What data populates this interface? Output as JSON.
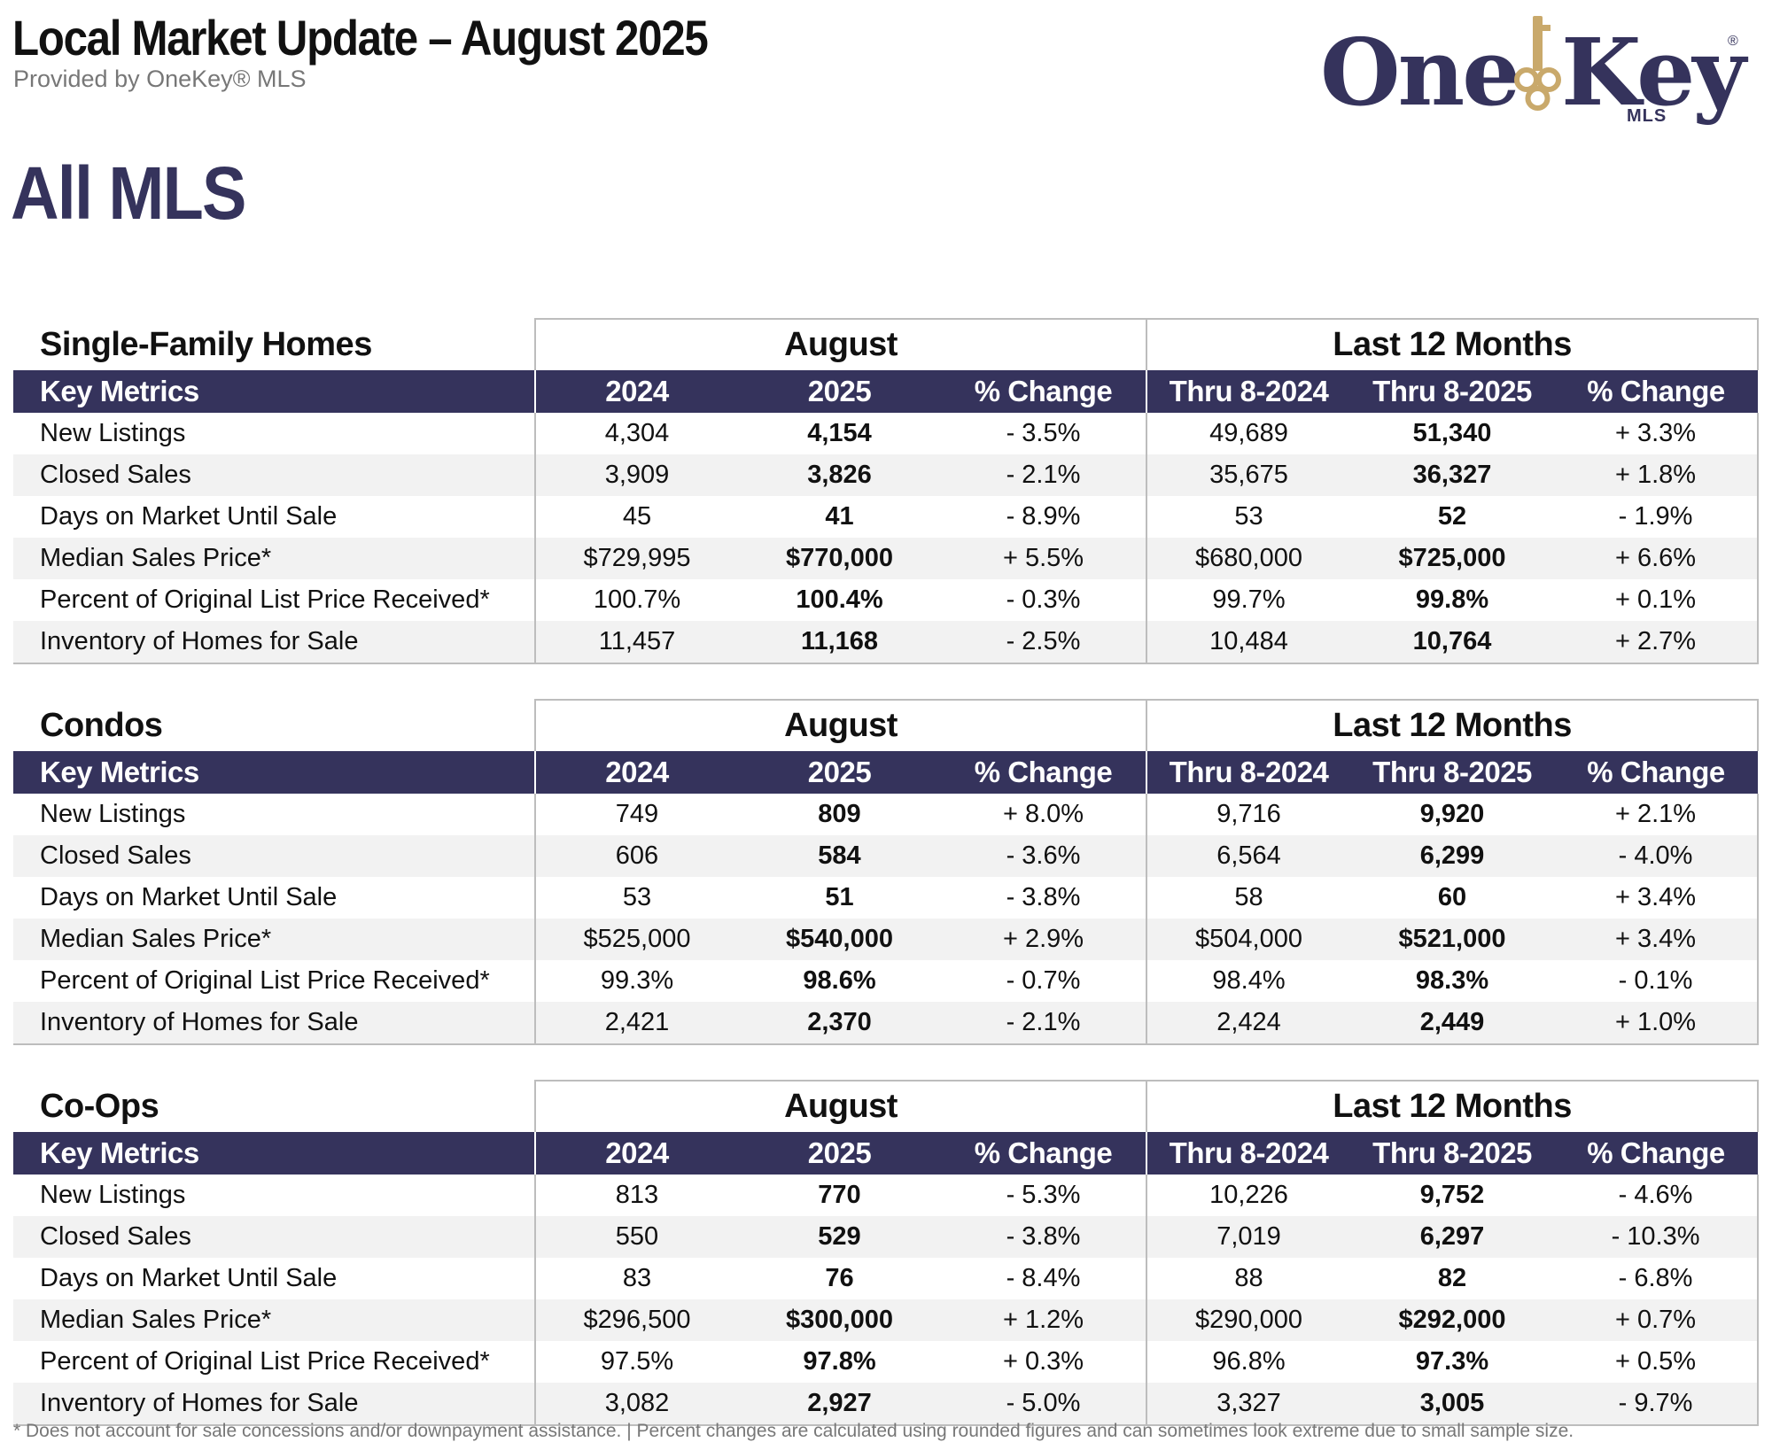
{
  "header": {
    "title": "Local Market Update – August 2025",
    "subtitle": "Provided by OneKey® MLS"
  },
  "logo": {
    "text_one": "One",
    "text_key": "Key",
    "registered": "®",
    "mls": "MLS",
    "accent_color": "#c9a96b",
    "brand_color": "#35335c"
  },
  "area_title": "All MLS",
  "column_headers": {
    "key_metrics": "Key Metrics",
    "group_month": "August",
    "group_12m": "Last 12 Months",
    "y2024": "2024",
    "y2025": "2025",
    "pct_change": "% Change",
    "thru_2024": "Thru 8-2024",
    "thru_2025": "Thru 8-2025"
  },
  "sections": [
    {
      "title": "Single-Family Homes",
      "rows": [
        {
          "metric": "New Listings",
          "m2024": "4,304",
          "m2025": "4,154",
          "mchg": "- 3.5%",
          "t2024": "49,689",
          "t2025": "51,340",
          "tchg": "+ 3.3%"
        },
        {
          "metric": "Closed Sales",
          "m2024": "3,909",
          "m2025": "3,826",
          "mchg": "- 2.1%",
          "t2024": "35,675",
          "t2025": "36,327",
          "tchg": "+ 1.8%"
        },
        {
          "metric": "Days on Market Until Sale",
          "m2024": "45",
          "m2025": "41",
          "mchg": "- 8.9%",
          "t2024": "53",
          "t2025": "52",
          "tchg": "- 1.9%"
        },
        {
          "metric": "Median Sales Price*",
          "m2024": "$729,995",
          "m2025": "$770,000",
          "mchg": "+ 5.5%",
          "t2024": "$680,000",
          "t2025": "$725,000",
          "tchg": "+ 6.6%"
        },
        {
          "metric": "Percent of Original List Price Received*",
          "m2024": "100.7%",
          "m2025": "100.4%",
          "mchg": "- 0.3%",
          "t2024": "99.7%",
          "t2025": "99.8%",
          "tchg": "+ 0.1%"
        },
        {
          "metric": "Inventory of Homes for Sale",
          "m2024": "11,457",
          "m2025": "11,168",
          "mchg": "- 2.5%",
          "t2024": "10,484",
          "t2025": "10,764",
          "tchg": "+ 2.7%"
        }
      ]
    },
    {
      "title": "Condos",
      "rows": [
        {
          "metric": "New Listings",
          "m2024": "749",
          "m2025": "809",
          "mchg": "+ 8.0%",
          "t2024": "9,716",
          "t2025": "9,920",
          "tchg": "+ 2.1%"
        },
        {
          "metric": "Closed Sales",
          "m2024": "606",
          "m2025": "584",
          "mchg": "- 3.6%",
          "t2024": "6,564",
          "t2025": "6,299",
          "tchg": "- 4.0%"
        },
        {
          "metric": "Days on Market Until Sale",
          "m2024": "53",
          "m2025": "51",
          "mchg": "- 3.8%",
          "t2024": "58",
          "t2025": "60",
          "tchg": "+ 3.4%"
        },
        {
          "metric": "Median Sales Price*",
          "m2024": "$525,000",
          "m2025": "$540,000",
          "mchg": "+ 2.9%",
          "t2024": "$504,000",
          "t2025": "$521,000",
          "tchg": "+ 3.4%"
        },
        {
          "metric": "Percent of Original List Price Received*",
          "m2024": "99.3%",
          "m2025": "98.6%",
          "mchg": "- 0.7%",
          "t2024": "98.4%",
          "t2025": "98.3%",
          "tchg": "- 0.1%"
        },
        {
          "metric": "Inventory of Homes for Sale",
          "m2024": "2,421",
          "m2025": "2,370",
          "mchg": "- 2.1%",
          "t2024": "2,424",
          "t2025": "2,449",
          "tchg": "+ 1.0%"
        }
      ]
    },
    {
      "title": "Co-Ops",
      "rows": [
        {
          "metric": "New Listings",
          "m2024": "813",
          "m2025": "770",
          "mchg": "- 5.3%",
          "t2024": "10,226",
          "t2025": "9,752",
          "tchg": "- 4.6%"
        },
        {
          "metric": "Closed Sales",
          "m2024": "550",
          "m2025": "529",
          "mchg": "- 3.8%",
          "t2024": "7,019",
          "t2025": "6,297",
          "tchg": "- 10.3%"
        },
        {
          "metric": "Days on Market Until Sale",
          "m2024": "83",
          "m2025": "76",
          "mchg": "- 8.4%",
          "t2024": "88",
          "t2025": "82",
          "tchg": "- 6.8%"
        },
        {
          "metric": "Median Sales Price*",
          "m2024": "$296,500",
          "m2025": "$300,000",
          "mchg": "+ 1.2%",
          "t2024": "$290,000",
          "t2025": "$292,000",
          "tchg": "+ 0.7%"
        },
        {
          "metric": "Percent of Original List Price Received*",
          "m2024": "97.5%",
          "m2025": "97.8%",
          "mchg": "+ 0.3%",
          "t2024": "96.8%",
          "t2025": "97.3%",
          "tchg": "+ 0.5%"
        },
        {
          "metric": "Inventory of Homes for Sale",
          "m2024": "3,082",
          "m2025": "2,927",
          "mchg": "- 5.0%",
          "t2024": "3,327",
          "t2025": "3,005",
          "tchg": "- 9.7%"
        }
      ]
    }
  ],
  "footnote": "* Does not account for sale concessions and/or downpayment assistance. | Percent changes are calculated using rounded figures and can sometimes look extreme due to small sample size."
}
